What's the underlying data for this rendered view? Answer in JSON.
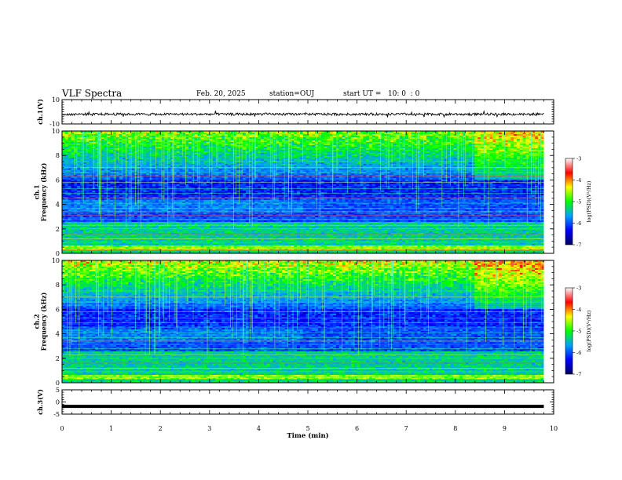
{
  "header": {
    "title": "VLF Spectra",
    "date": "Feb. 20, 2025",
    "station": "station=OUJ",
    "start_ut": "start UT =   10: 0  : 0"
  },
  "colorbar": {
    "label": "log(PSD)(V²/Hz)",
    "ticks": [
      "-3",
      "-4",
      "-5",
      "-6",
      "-7"
    ],
    "stops": [
      "#ffffff",
      "#ff0000",
      "#ffff00",
      "#00ff00",
      "#00a0ff",
      "#0000ff",
      "#000060"
    ]
  },
  "chart_data": [
    {
      "type": "line",
      "panel": "waveform-ch1",
      "ylabel": "ch.1(V)",
      "yticks": [
        "10",
        "-10"
      ],
      "ylim": [
        -10,
        10
      ],
      "x_range": [
        0,
        9.8
      ],
      "trace": "noise band about -2 V, amplitude ±1 V",
      "color": "#000000"
    },
    {
      "type": "heatmap",
      "panel": "spectrogram-ch1",
      "ylabel": "ch.1\nFrequency (kHz)",
      "yticks": [
        "0",
        "2",
        "4",
        "6",
        "8",
        "10"
      ],
      "ylim": [
        0,
        10
      ],
      "xlim": [
        0,
        10
      ],
      "z_range": [
        -7,
        -3
      ],
      "z_label": "log(PSD)(V²/Hz)"
    },
    {
      "type": "heatmap",
      "panel": "spectrogram-ch2",
      "ylabel": "ch.2\nFrequency (kHz)",
      "yticks": [
        "0",
        "2",
        "4",
        "6",
        "8",
        "10"
      ],
      "ylim": [
        0,
        10
      ],
      "xlim": [
        0,
        10
      ],
      "z_range": [
        -7,
        -3
      ],
      "z_label": "log(PSD)(V²/Hz)"
    },
    {
      "type": "line",
      "panel": "waveform-ch3",
      "ylabel": "ch.3(V)",
      "yticks": [
        "5",
        "0",
        "-5"
      ],
      "ylim": [
        -5,
        5
      ],
      "x_range": [
        0,
        9.8
      ],
      "values_constant": -1.8,
      "color": "#000000"
    }
  ],
  "xaxis": {
    "label": "Time (min)",
    "ticks": [
      "0",
      "1",
      "2",
      "3",
      "4",
      "5",
      "6",
      "7",
      "8",
      "9",
      "10"
    ],
    "range": [
      0,
      10
    ]
  }
}
